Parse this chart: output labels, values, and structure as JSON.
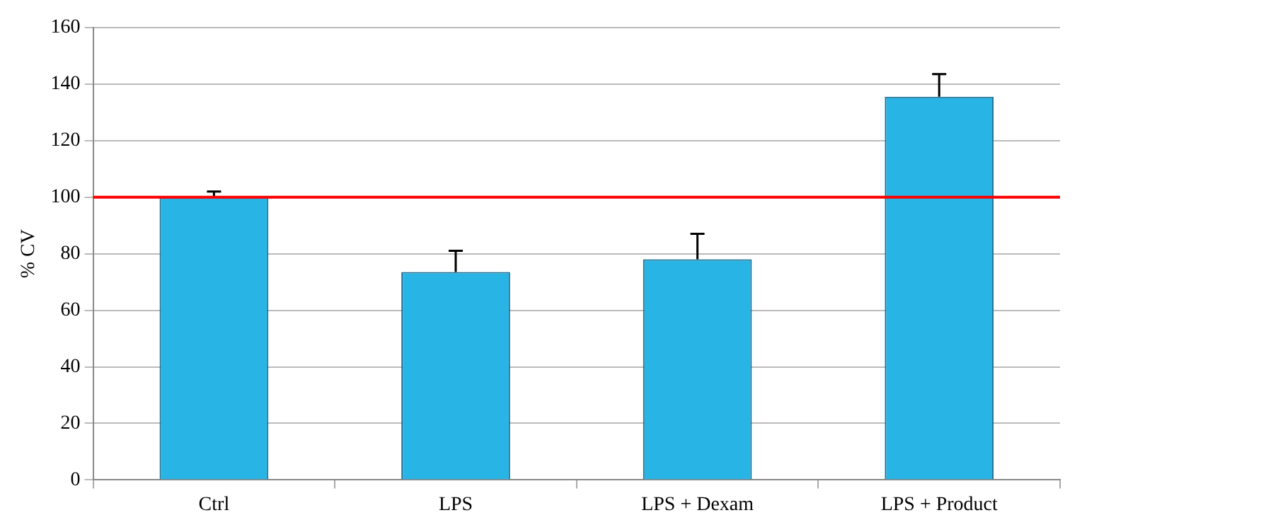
{
  "chart_data": {
    "type": "bar",
    "ylabel": "% CV",
    "categories": [
      "Ctrl",
      "LPS",
      "LPS + Dexam",
      "LPS + Product"
    ],
    "values": [
      100,
      73.5,
      78,
      135.5
    ],
    "color": "#29b4e6",
    "errors": [
      [
        100,
        102
      ],
      [
        73.5,
        81
      ],
      [
        78,
        87
      ],
      [
        135.5,
        143.5
      ]
    ],
    "ylim": [
      0,
      160
    ],
    "yticks": [
      0,
      20,
      40,
      60,
      80,
      100,
      120,
      140,
      160
    ],
    "grid": "y",
    "legend": false,
    "ref_lines": [
      {
        "axis": "y",
        "value": 100,
        "color": "#ff0000"
      }
    ]
  }
}
